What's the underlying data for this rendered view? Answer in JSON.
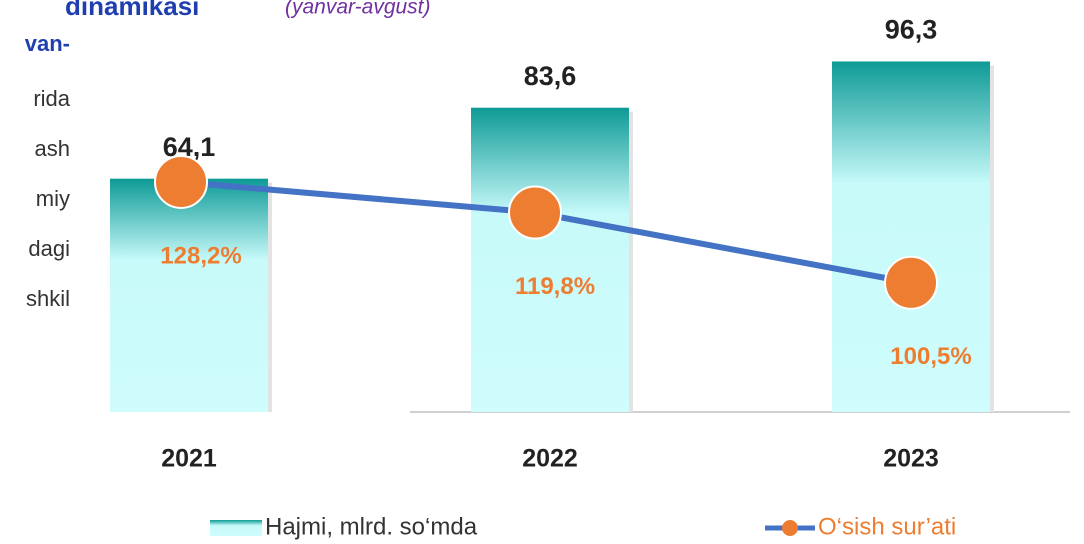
{
  "chart_data": {
    "type": "bar_line",
    "title": "dinamikasi",
    "subtitle": "(yanvar-avgust)",
    "categories": [
      "2021",
      "2022",
      "2023"
    ],
    "series": [
      {
        "name": "Hajmi, mlrd. so‘mda",
        "type": "bar",
        "color": "#0e9a96",
        "values": [
          64.1,
          83.6,
          96.3
        ],
        "value_labels": [
          "64,1",
          "83,6",
          "96,3"
        ]
      },
      {
        "name": "O‘sish sur’ati",
        "type": "line",
        "axis": "y2",
        "color": "#4472c4",
        "marker_color": "#ed7d31",
        "values": [
          128.2,
          119.8,
          100.5
        ],
        "value_labels": [
          "128,2%",
          "119,8%",
          "100,5%"
        ]
      }
    ],
    "ylim": [
      0,
      100
    ],
    "y2lim": [
      65,
      165
    ]
  },
  "side_text": [
    "van-",
    "rida",
    "ash",
    "miy",
    "dagi",
    "shkil"
  ]
}
